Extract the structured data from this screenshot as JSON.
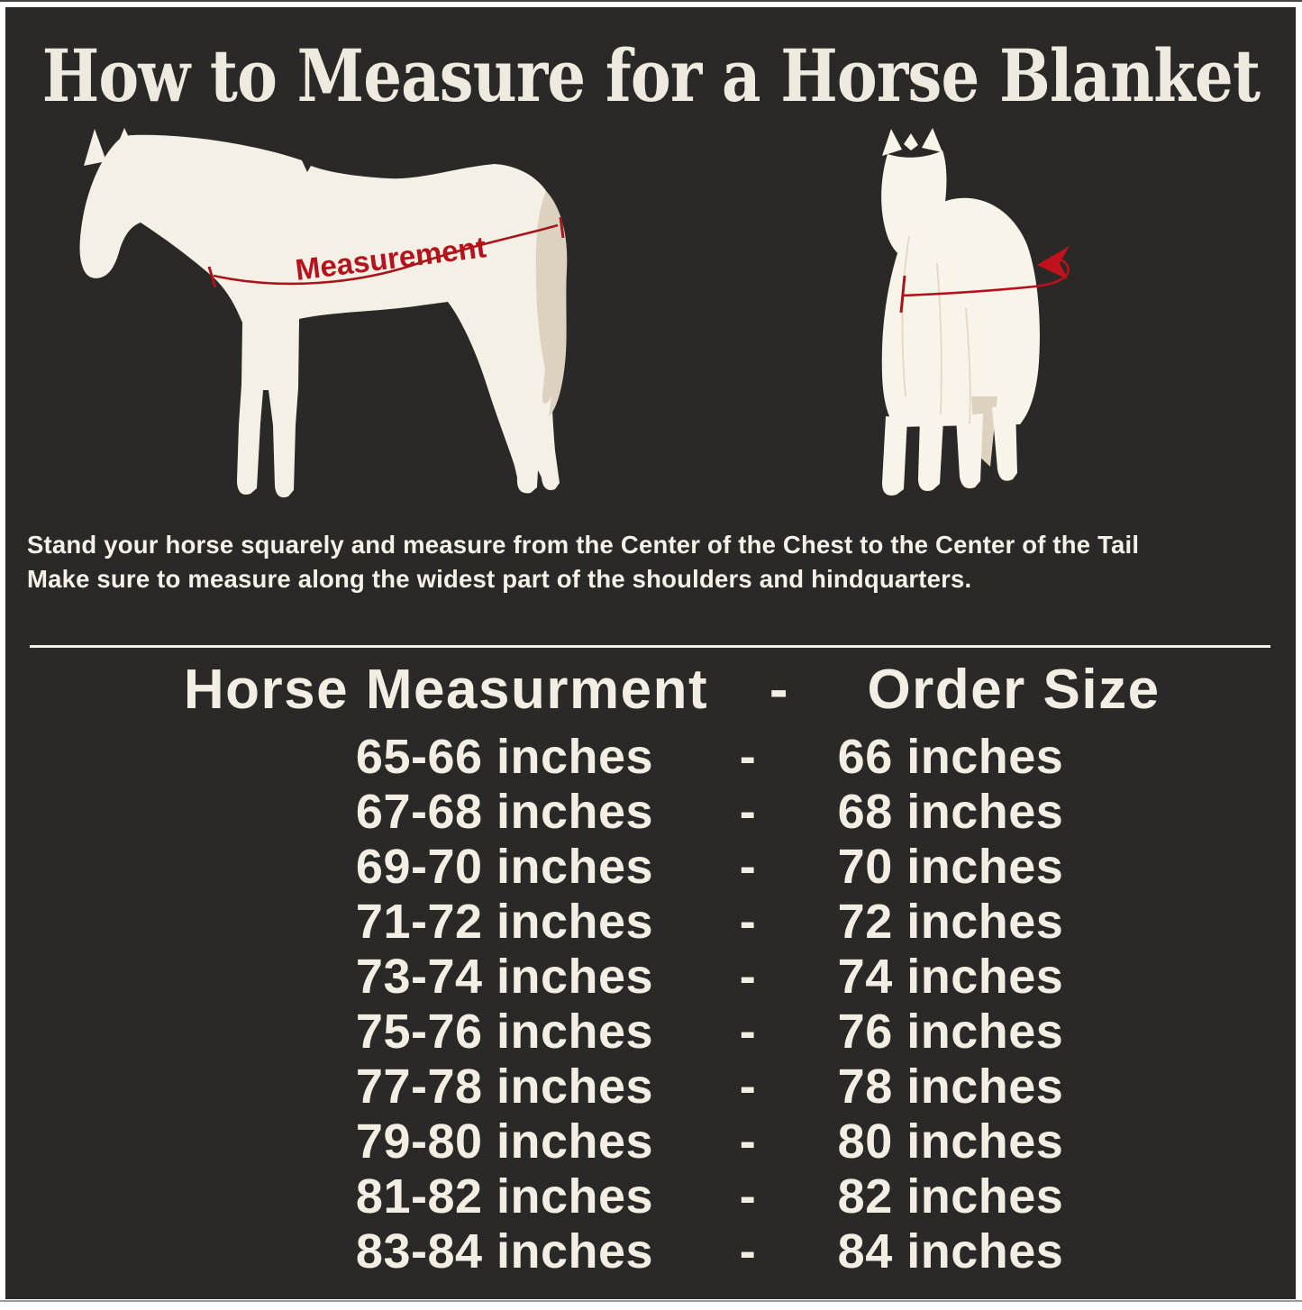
{
  "colors": {
    "background": "#2b2928",
    "frame": "#ffffff",
    "cream_text": "#f3eee3",
    "horse_body": "#f5f0e5",
    "horse_tail": "#ddd2bf",
    "measure_red": "#b5121b"
  },
  "title": "How to Measure for a Horse Blanket",
  "diagram": {
    "measurement_label": "Measurement"
  },
  "instructions": {
    "line1": "Stand your horse squarely and measure from the Center of the Chest to the Center of the Tail",
    "line2": "Make sure to measure along the widest part of the shoulders and hindquarters."
  },
  "size_table": {
    "header": {
      "measurement_col": "Horse Measurment",
      "separator": "-",
      "size_col": "Order Size"
    },
    "separator": "-",
    "rows": [
      {
        "measurement": "65-66 inches",
        "size": "66 inches"
      },
      {
        "measurement": "67-68 inches",
        "size": "68 inches"
      },
      {
        "measurement": "69-70 inches",
        "size": "70 inches"
      },
      {
        "measurement": "71-72 inches",
        "size": "72 inches"
      },
      {
        "measurement": "73-74 inches",
        "size": "74 inches"
      },
      {
        "measurement": "75-76 inches",
        "size": "76 inches"
      },
      {
        "measurement": "77-78 inches",
        "size": "78 inches"
      },
      {
        "measurement": "79-80 inches",
        "size": "80 inches"
      },
      {
        "measurement": "81-82 inches",
        "size": "82 inches"
      },
      {
        "measurement": "83-84 inches",
        "size": "84 inches"
      }
    ]
  }
}
